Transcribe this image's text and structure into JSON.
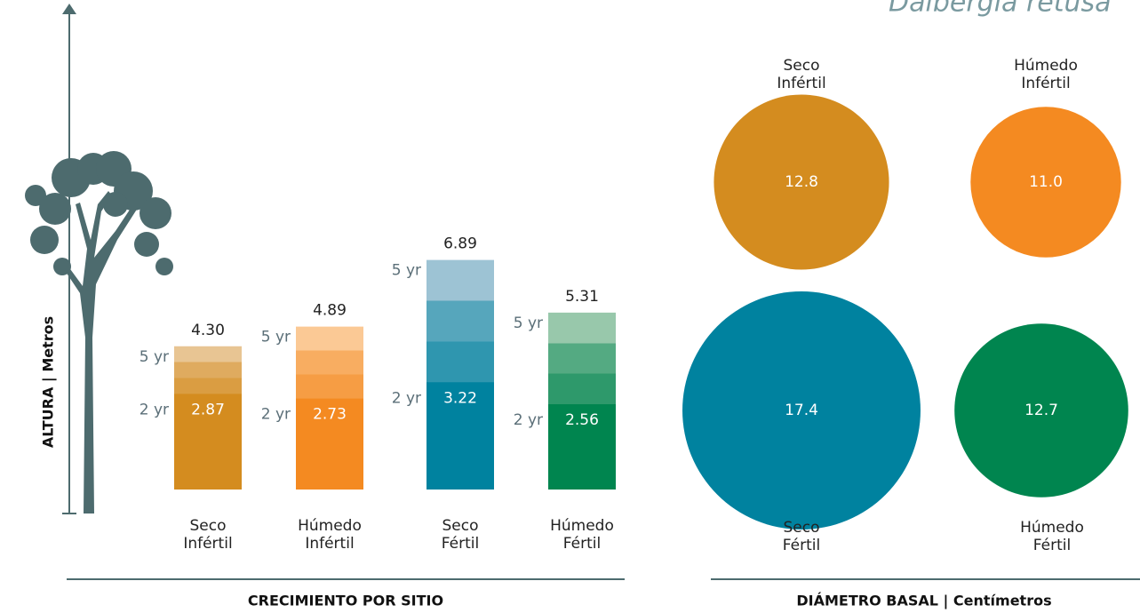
{
  "header": {
    "title": "Dalbergia retusa"
  },
  "chart_data": [
    {
      "type": "bar",
      "title": "CRECIMIENTO POR SITIO",
      "y_label": "ALTURA  |  Metros",
      "categories": [
        [
          "Seco",
          "Infértil"
        ],
        [
          "Húmedo",
          "Infértil"
        ],
        [
          "Seco",
          "Fértil"
        ],
        [
          "Húmedo",
          "Fértil"
        ]
      ],
      "series": [
        {
          "name": "2 yr",
          "colors": [
            "#d48c1f",
            "#f48a21",
            "#00829f",
            "#00854f"
          ],
          "values": [
            2.87,
            2.73,
            3.22,
            2.56
          ]
        },
        {
          "name": "5 yr",
          "colors": [
            "#e8c593",
            "#fbc995",
            "#9dc3d4",
            "#98c8ab"
          ],
          "values": [
            4.3,
            4.89,
            6.89,
            5.31
          ],
          "value_labels": [
            "4.30",
            "4.89",
            "6.89",
            "5.31"
          ]
        }
      ]
    },
    {
      "type": "bubble",
      "title": "DIÁMETRO BASAL | Centímetros",
      "categories": [
        [
          "Seco",
          "Infértil"
        ],
        [
          "Húmedo",
          "Infértil"
        ],
        [
          "Seco",
          "Fértil"
        ],
        [
          "Húmedo",
          "Fértil"
        ]
      ],
      "values": [
        12.8,
        11.0,
        17.4,
        12.7
      ],
      "value_labels": [
        "12.8",
        "11.0",
        "17.4",
        "12.7"
      ],
      "colors": [
        "#d48c1f",
        "#f48a21",
        "#00829f",
        "#00854f"
      ]
    }
  ]
}
